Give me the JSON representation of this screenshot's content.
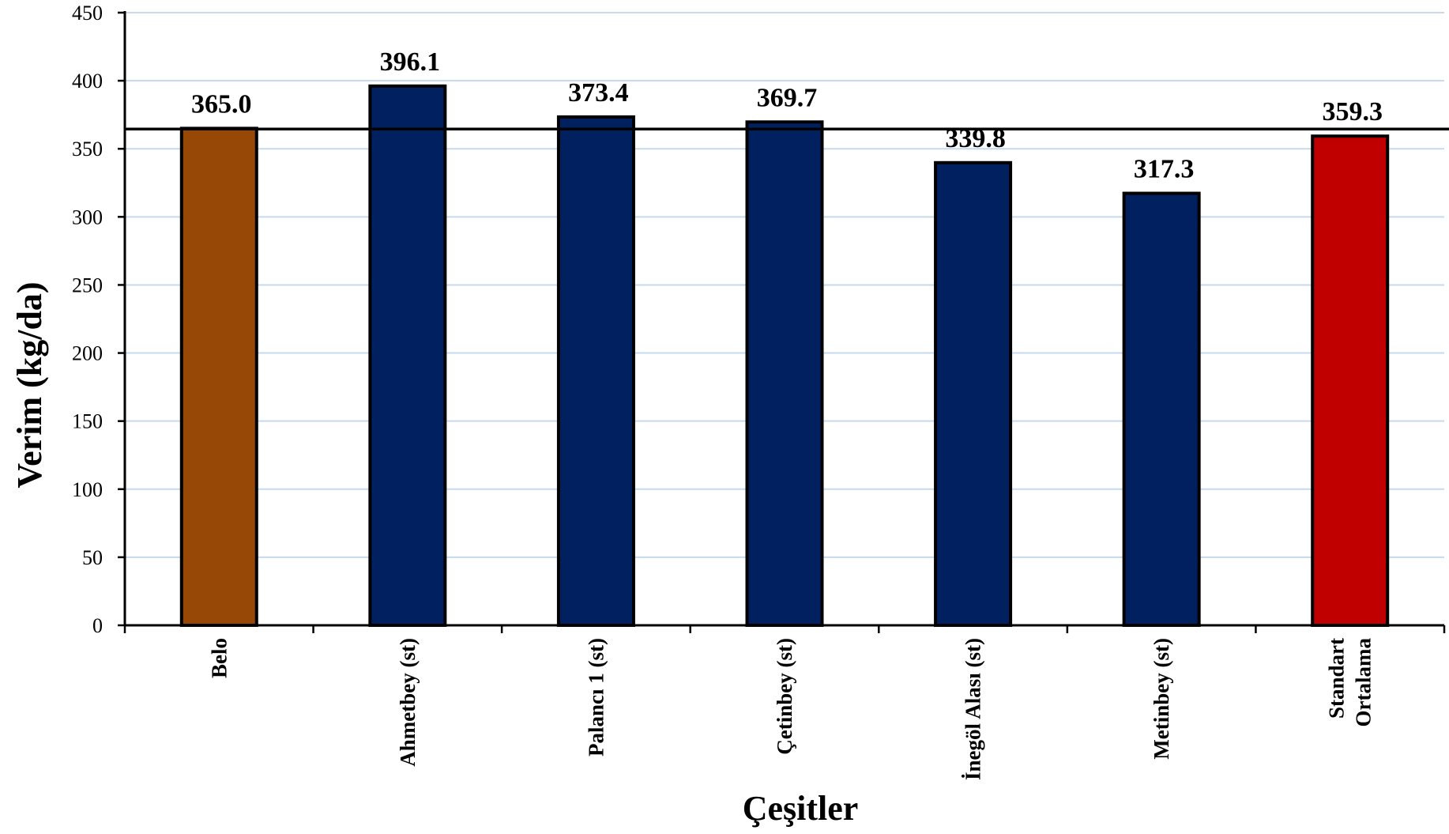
{
  "chart_data": {
    "type": "bar",
    "title": "",
    "xlabel": "Çeşitler",
    "ylabel": "Verim (kg/da)",
    "ylim": [
      0,
      450
    ],
    "yticks": [
      0,
      50,
      100,
      150,
      200,
      250,
      300,
      350,
      400,
      450
    ],
    "grid": true,
    "categories": [
      [
        "Belo"
      ],
      [
        "Ahmetbey (st)"
      ],
      [
        "Palancı 1 (st)"
      ],
      [
        "Çetinbey (st)"
      ],
      [
        "İnegöl Alası (st)"
      ],
      [
        "Metinbey (st)"
      ],
      [
        "Standart",
        "Ortalama"
      ]
    ],
    "values": [
      365.0,
      396.1,
      373.4,
      369.7,
      339.8,
      317.3,
      359.3
    ],
    "value_labels": [
      "365.0",
      "396.1",
      "373.4",
      "369.7",
      "339.8",
      "317.3",
      "359.3"
    ],
    "bar_colors": [
      "#984806",
      "#002060",
      "#002060",
      "#002060",
      "#002060",
      "#002060",
      "#C00000"
    ],
    "reference_line": 359.3,
    "colors": {
      "grid": "#c6d9ee",
      "axis": "#000000",
      "bar_outline": "#000000"
    }
  }
}
